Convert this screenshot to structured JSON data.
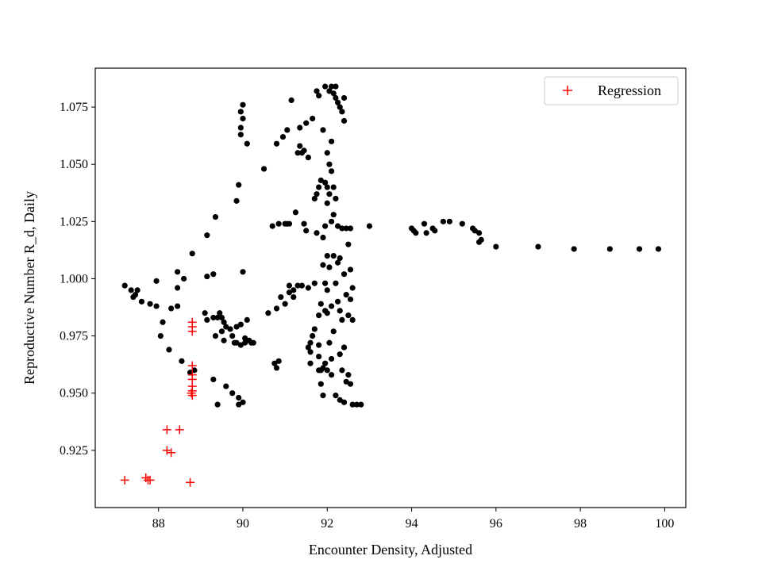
{
  "chart_data": {
    "type": "scatter",
    "xlabel": "Encounter Density, Adjusted",
    "ylabel": "Reproductive Number R_d, Daily",
    "xlim": [
      86.5,
      100.5
    ],
    "ylim": [
      0.9,
      1.092
    ],
    "xticks": [
      88,
      90,
      92,
      94,
      96,
      98,
      100
    ],
    "yticks": [
      0.925,
      0.95,
      0.975,
      1.0,
      1.025,
      1.05,
      1.075
    ],
    "ytick_labels": [
      "0.925",
      "0.950",
      "0.975",
      "1.000",
      "1.025",
      "1.050",
      "1.075"
    ],
    "grid": false,
    "legend": {
      "position": "top-right",
      "entries": [
        "Regression"
      ]
    },
    "series": [
      {
        "name": "",
        "marker": "dot",
        "color": "#000000",
        "points": [
          [
            87.2,
            0.997
          ],
          [
            87.35,
            0.995
          ],
          [
            87.4,
            0.992
          ],
          [
            87.45,
            0.993
          ],
          [
            87.5,
            0.995
          ],
          [
            87.6,
            0.99
          ],
          [
            87.8,
            0.989
          ],
          [
            87.95,
            0.999
          ],
          [
            87.95,
            0.988
          ],
          [
            88.05,
            0.975
          ],
          [
            88.1,
            0.981
          ],
          [
            88.25,
            0.969
          ],
          [
            88.3,
            0.987
          ],
          [
            88.45,
            0.988
          ],
          [
            88.45,
            0.996
          ],
          [
            88.45,
            1.003
          ],
          [
            88.55,
            0.964
          ],
          [
            88.6,
            1.0
          ],
          [
            88.75,
            0.959
          ],
          [
            88.8,
            1.011
          ],
          [
            88.85,
            0.96
          ],
          [
            89.1,
            0.985
          ],
          [
            89.15,
            0.982
          ],
          [
            89.15,
            1.001
          ],
          [
            89.15,
            1.019
          ],
          [
            89.3,
            0.983
          ],
          [
            89.3,
            1.002
          ],
          [
            89.3,
            0.956
          ],
          [
            89.35,
            0.975
          ],
          [
            89.35,
            1.027
          ],
          [
            89.4,
            0.983
          ],
          [
            89.4,
            0.945
          ],
          [
            89.45,
            0.985
          ],
          [
            89.5,
            0.983
          ],
          [
            89.5,
            0.977
          ],
          [
            89.55,
            0.981
          ],
          [
            89.55,
            0.973
          ],
          [
            89.6,
            0.979
          ],
          [
            89.6,
            0.953
          ],
          [
            89.7,
            0.978
          ],
          [
            89.75,
            0.975
          ],
          [
            89.75,
            0.95
          ],
          [
            89.8,
            0.972
          ],
          [
            89.85,
            1.034
          ],
          [
            89.85,
            0.979
          ],
          [
            89.85,
            0.972
          ],
          [
            89.9,
            1.041
          ],
          [
            89.9,
            0.948
          ],
          [
            89.9,
            0.945
          ],
          [
            89.95,
            1.073
          ],
          [
            89.95,
            1.066
          ],
          [
            89.95,
            1.063
          ],
          [
            89.95,
            0.98
          ],
          [
            89.95,
            0.971
          ],
          [
            90.0,
            1.076
          ],
          [
            90.0,
            1.07
          ],
          [
            90.0,
            1.003
          ],
          [
            90.0,
            0.946
          ],
          [
            90.05,
            0.974
          ],
          [
            90.05,
            0.972
          ],
          [
            90.1,
            1.059
          ],
          [
            90.1,
            0.982
          ],
          [
            90.15,
            0.973
          ],
          [
            90.2,
            0.972
          ],
          [
            90.25,
            0.972
          ],
          [
            90.5,
            1.048
          ],
          [
            90.6,
            0.985
          ],
          [
            90.7,
            1.023
          ],
          [
            90.75,
            0.963
          ],
          [
            90.8,
            1.059
          ],
          [
            90.8,
            0.987
          ],
          [
            90.8,
            0.961
          ],
          [
            90.85,
            1.024
          ],
          [
            90.85,
            0.964
          ],
          [
            90.9,
            0.992
          ],
          [
            90.95,
            1.062
          ],
          [
            91.0,
            1.024
          ],
          [
            91.0,
            0.989
          ],
          [
            91.05,
            1.024
          ],
          [
            91.05,
            1.065
          ],
          [
            91.1,
            1.024
          ],
          [
            91.1,
            0.997
          ],
          [
            91.1,
            0.994
          ],
          [
            91.15,
            1.078
          ],
          [
            91.2,
            0.995
          ],
          [
            91.2,
            0.992
          ],
          [
            91.25,
            1.029
          ],
          [
            91.3,
            0.997
          ],
          [
            91.3,
            1.055
          ],
          [
            91.35,
            1.066
          ],
          [
            91.35,
            1.058
          ],
          [
            91.4,
            0.997
          ],
          [
            91.4,
            1.055
          ],
          [
            91.45,
            1.024
          ],
          [
            91.45,
            1.056
          ],
          [
            91.5,
            1.021
          ],
          [
            91.5,
            1.068
          ],
          [
            91.55,
            0.996
          ],
          [
            91.55,
            1.053
          ],
          [
            91.55,
            0.97
          ],
          [
            91.6,
            0.972
          ],
          [
            91.6,
            0.968
          ],
          [
            91.6,
            0.963
          ],
          [
            91.65,
            0.975
          ],
          [
            91.65,
            1.07
          ],
          [
            91.7,
            0.978
          ],
          [
            91.7,
            0.998
          ],
          [
            91.7,
            1.035
          ],
          [
            91.75,
            1.037
          ],
          [
            91.75,
            1.02
          ],
          [
            91.75,
            1.082
          ],
          [
            91.8,
            1.08
          ],
          [
            91.8,
            1.04
          ],
          [
            91.8,
            0.984
          ],
          [
            91.8,
            0.971
          ],
          [
            91.8,
            0.966
          ],
          [
            91.8,
            0.96
          ],
          [
            91.85,
            1.043
          ],
          [
            91.85,
            0.989
          ],
          [
            91.85,
            0.96
          ],
          [
            91.85,
            0.954
          ],
          [
            91.9,
            1.065
          ],
          [
            91.9,
            1.018
          ],
          [
            91.9,
            1.006
          ],
          [
            91.9,
            0.961
          ],
          [
            91.9,
            0.949
          ],
          [
            91.95,
            1.084
          ],
          [
            91.95,
            1.042
          ],
          [
            91.95,
            1.023
          ],
          [
            91.95,
            0.998
          ],
          [
            91.95,
            0.986
          ],
          [
            91.95,
            0.963
          ],
          [
            92.0,
            1.055
          ],
          [
            92.0,
            1.04
          ],
          [
            92.0,
            1.033
          ],
          [
            92.0,
            1.01
          ],
          [
            92.0,
            0.995
          ],
          [
            92.0,
            0.985
          ],
          [
            92.0,
            0.96
          ],
          [
            92.05,
            1.082
          ],
          [
            92.05,
            1.05
          ],
          [
            92.05,
            1.037
          ],
          [
            92.05,
            1.005
          ],
          [
            92.05,
            0.972
          ],
          [
            92.1,
            1.084
          ],
          [
            92.1,
            1.06
          ],
          [
            92.1,
            1.047
          ],
          [
            92.1,
            1.025
          ],
          [
            92.1,
            0.988
          ],
          [
            92.1,
            0.965
          ],
          [
            92.1,
            0.958
          ],
          [
            92.15,
            1.081
          ],
          [
            92.15,
            1.04
          ],
          [
            92.15,
            1.028
          ],
          [
            92.15,
            1.01
          ],
          [
            92.15,
            0.977
          ],
          [
            92.2,
            1.084
          ],
          [
            92.2,
            1.079
          ],
          [
            92.2,
            1.035
          ],
          [
            92.2,
            0.998
          ],
          [
            92.2,
            0.949
          ],
          [
            92.25,
            1.077
          ],
          [
            92.25,
            1.023
          ],
          [
            92.25,
            1.007
          ],
          [
            92.25,
            0.99
          ],
          [
            92.3,
            1.075
          ],
          [
            92.3,
            1.009
          ],
          [
            92.3,
            0.986
          ],
          [
            92.3,
            0.967
          ],
          [
            92.3,
            0.947
          ],
          [
            92.35,
            1.073
          ],
          [
            92.35,
            1.022
          ],
          [
            92.35,
            0.982
          ],
          [
            92.35,
            0.96
          ],
          [
            92.4,
            1.079
          ],
          [
            92.4,
            1.069
          ],
          [
            92.4,
            1.002
          ],
          [
            92.4,
            0.97
          ],
          [
            92.4,
            0.946
          ],
          [
            92.45,
            1.022
          ],
          [
            92.45,
            0.993
          ],
          [
            92.45,
            0.955
          ],
          [
            92.5,
            1.015
          ],
          [
            92.5,
            0.984
          ],
          [
            92.5,
            0.958
          ],
          [
            92.55,
            1.022
          ],
          [
            92.55,
            1.004
          ],
          [
            92.55,
            0.991
          ],
          [
            92.55,
            0.954
          ],
          [
            92.6,
            0.996
          ],
          [
            92.6,
            0.982
          ],
          [
            92.6,
            0.945
          ],
          [
            92.7,
            0.945
          ],
          [
            92.8,
            0.945
          ],
          [
            93.0,
            1.023
          ],
          [
            94.0,
            1.022
          ],
          [
            94.05,
            1.021
          ],
          [
            94.1,
            1.02
          ],
          [
            94.3,
            1.024
          ],
          [
            94.35,
            1.02
          ],
          [
            94.5,
            1.022
          ],
          [
            94.55,
            1.021
          ],
          [
            94.75,
            1.025
          ],
          [
            94.9,
            1.025
          ],
          [
            95.2,
            1.024
          ],
          [
            95.45,
            1.022
          ],
          [
            95.5,
            1.021
          ],
          [
            95.6,
            1.02
          ],
          [
            95.65,
            1.017
          ],
          [
            95.6,
            1.016
          ],
          [
            96.0,
            1.014
          ],
          [
            97.0,
            1.014
          ],
          [
            97.85,
            1.013
          ],
          [
            98.7,
            1.013
          ],
          [
            99.4,
            1.013
          ],
          [
            99.85,
            1.013
          ]
        ]
      },
      {
        "name": "Regression",
        "marker": "plus",
        "color": "#ff0000",
        "points": [
          [
            87.2,
            0.912
          ],
          [
            87.7,
            0.913
          ],
          [
            87.75,
            0.912
          ],
          [
            87.8,
            0.912
          ],
          [
            88.2,
            0.934
          ],
          [
            88.2,
            0.925
          ],
          [
            88.3,
            0.924
          ],
          [
            88.5,
            0.934
          ],
          [
            88.75,
            0.911
          ],
          [
            88.8,
            0.981
          ],
          [
            88.8,
            0.979
          ],
          [
            88.8,
            0.977
          ],
          [
            88.8,
            0.962
          ],
          [
            88.8,
            0.958
          ],
          [
            88.8,
            0.956
          ],
          [
            88.8,
            0.953
          ],
          [
            88.8,
            0.951
          ],
          [
            88.8,
            0.949
          ],
          [
            88.78,
            0.95
          ]
        ]
      }
    ]
  }
}
